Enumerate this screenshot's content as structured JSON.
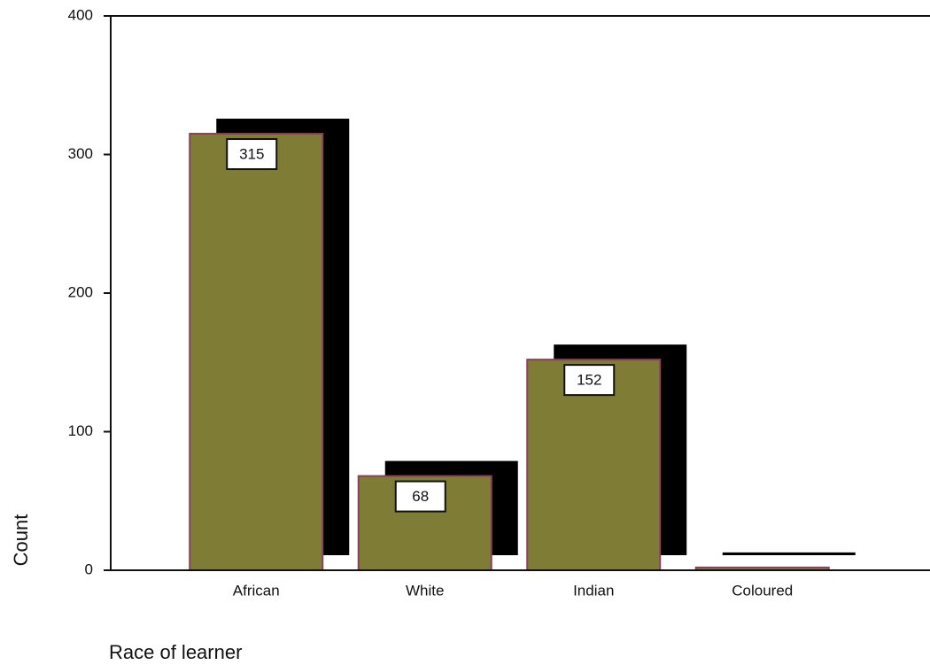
{
  "chart_data": {
    "type": "bar",
    "x_label": "Race of learner",
    "y_label": "Count",
    "categories": [
      "African",
      "White",
      "Indian",
      "Coloured"
    ],
    "values": [
      315,
      68,
      152,
      2
    ],
    "value_labels": [
      "315",
      "68",
      "152",
      null
    ],
    "color": "#7f7c35",
    "edge_color": "#8a3f5e",
    "shadow_color": "#000000",
    "ylim": [
      0,
      400
    ],
    "yticks": [
      0,
      100,
      200,
      300,
      400
    ],
    "grid": false
  }
}
